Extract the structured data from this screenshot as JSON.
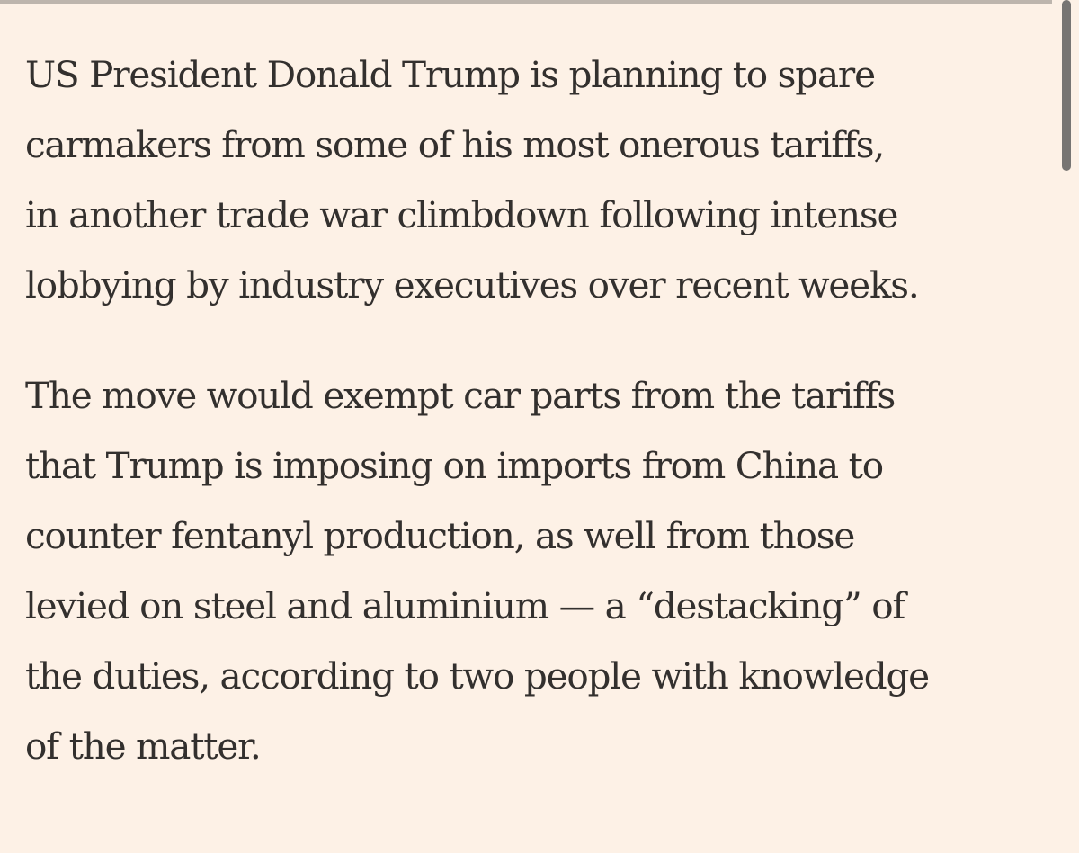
{
  "article": {
    "paragraphs": [
      {
        "lines": [
          "US President Donald Trump is planning to spare",
          "carmakers from some of his most onerous tariffs,",
          "in another trade war climbdown following intense",
          "lobbying by industry executives over recent weeks."
        ]
      },
      {
        "lines": [
          "The move would exempt car parts from the tariffs",
          "that Trump is imposing on imports from China to",
          "counter fentanyl production, as well from those",
          "levied on steel and aluminium — a “destacking” of",
          "the duties, according to two people with knowledge",
          "of the matter."
        ]
      }
    ]
  }
}
